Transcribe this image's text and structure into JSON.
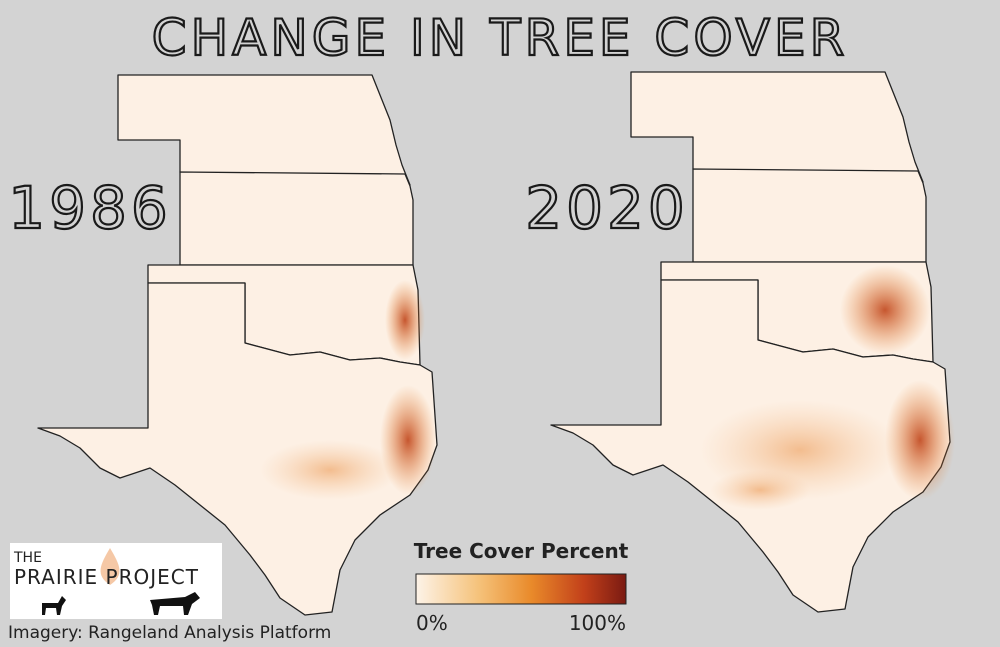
{
  "header": {
    "title": "CHANGE IN TREE COVER"
  },
  "maps": [
    {
      "label": "1986"
    },
    {
      "label": "2020"
    }
  ],
  "legend": {
    "title": "Tree Cover Percent",
    "min_label": "0%",
    "max_label": "100%"
  },
  "logo": {
    "line1": "THE",
    "line2": "PRAIRIE PROJECT"
  },
  "credit": "Imagery: Rangeland Analysis Platform"
}
